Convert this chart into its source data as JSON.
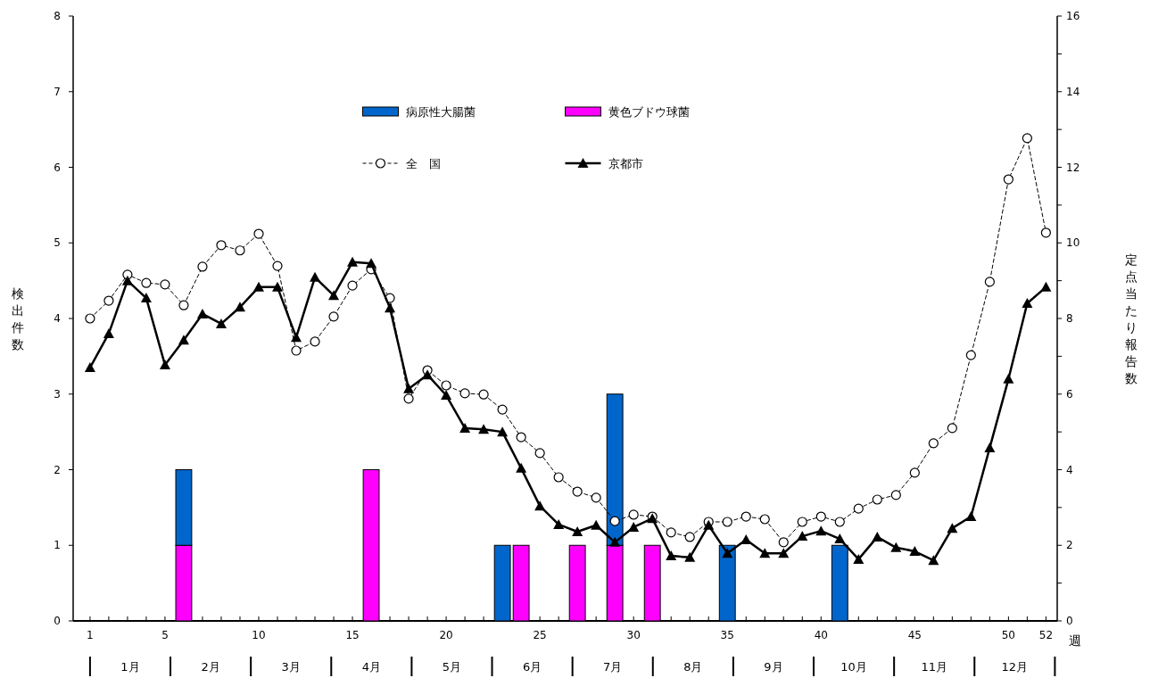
{
  "chart_data": {
    "type": "bar",
    "stacked": true,
    "xlabel": "週",
    "ylabel": "検出件数",
    "y2label": "定点当たり報告数",
    "x": [
      1,
      2,
      3,
      4,
      5,
      6,
      7,
      8,
      9,
      10,
      11,
      12,
      13,
      14,
      15,
      16,
      17,
      18,
      19,
      20,
      21,
      22,
      23,
      24,
      25,
      26,
      27,
      28,
      29,
      30,
      31,
      32,
      33,
      34,
      35,
      36,
      37,
      38,
      39,
      40,
      41,
      42,
      43,
      44,
      45,
      46,
      47,
      48,
      49,
      50,
      51,
      52
    ],
    "series": [
      {
        "name": "黄色ブドウ球菌",
        "color": "#ff00ff",
        "values": [
          null,
          null,
          null,
          null,
          null,
          1,
          null,
          null,
          null,
          null,
          null,
          null,
          null,
          null,
          null,
          2,
          null,
          null,
          null,
          null,
          null,
          null,
          null,
          1,
          null,
          null,
          1,
          null,
          1,
          null,
          1,
          null,
          null,
          null,
          null,
          null,
          null,
          null,
          null,
          null,
          null,
          null,
          null,
          null,
          null,
          null,
          null,
          null,
          null,
          null,
          null,
          null
        ]
      },
      {
        "name": "病原性大腸菌",
        "color": "#0066cc",
        "values": [
          null,
          null,
          null,
          null,
          null,
          1,
          null,
          null,
          null,
          null,
          null,
          null,
          null,
          null,
          null,
          null,
          null,
          null,
          null,
          null,
          null,
          null,
          1,
          null,
          null,
          null,
          null,
          null,
          2,
          null,
          null,
          null,
          null,
          null,
          1,
          null,
          null,
          null,
          null,
          null,
          1,
          null,
          null,
          null,
          null,
          null,
          null,
          null,
          null,
          null,
          null,
          null
        ]
      },
      {
        "name": "全　国",
        "type": "line",
        "axis": "y2",
        "color": "#000000",
        "marker": "circle",
        "line_style": "dashed",
        "values": [
          8.0,
          8.47,
          9.16,
          8.94,
          8.9,
          8.35,
          9.37,
          9.94,
          9.8,
          10.24,
          9.39,
          7.15,
          7.39,
          8.05,
          8.87,
          9.3,
          8.54,
          5.88,
          6.63,
          6.23,
          6.02,
          5.99,
          5.59,
          4.86,
          4.44,
          3.8,
          3.42,
          3.26,
          2.64,
          2.81,
          2.76,
          2.34,
          2.22,
          2.62,
          2.62,
          2.76,
          2.69,
          2.08,
          2.62,
          2.76,
          2.62,
          2.97,
          3.21,
          3.33,
          3.92,
          4.7,
          5.1,
          7.03,
          8.97,
          11.68,
          12.77,
          10.27
        ]
      },
      {
        "name": "京都市",
        "type": "line",
        "axis": "y2",
        "color": "#000000",
        "marker": "triangle",
        "line_style": "solid",
        "values": [
          6.7,
          7.6,
          9.0,
          8.54,
          6.77,
          7.43,
          8.12,
          7.86,
          8.3,
          8.83,
          8.83,
          7.5,
          9.09,
          8.61,
          9.49,
          9.46,
          8.28,
          6.14,
          6.51,
          5.97,
          5.1,
          5.07,
          5.0,
          4.04,
          3.04,
          2.55,
          2.36,
          2.53,
          2.08,
          2.48,
          2.71,
          1.72,
          1.68,
          2.53,
          1.79,
          2.15,
          1.79,
          1.79,
          2.24,
          2.38,
          2.17,
          1.63,
          2.22,
          1.94,
          1.84,
          1.6,
          2.45,
          2.76,
          4.58,
          6.4,
          8.4,
          8.83
        ]
      }
    ],
    "xlim": [
      0.1,
      52.6
    ],
    "xticks": [
      1,
      {
        "value": 2,
        "label": null
      },
      {
        "value": 3,
        "label": null
      },
      {
        "value": 4,
        "label": null
      },
      5,
      {
        "value": 6,
        "label": null
      },
      {
        "value": 7,
        "label": null
      },
      {
        "value": 8,
        "label": null
      },
      {
        "value": 9,
        "label": null
      },
      10,
      {
        "value": 11,
        "label": null
      },
      {
        "value": 12,
        "label": null
      },
      {
        "value": 13,
        "label": null
      },
      {
        "value": 14,
        "label": null
      },
      15,
      {
        "value": 16,
        "label": null
      },
      {
        "value": 17,
        "label": null
      },
      {
        "value": 18,
        "label": null
      },
      {
        "value": 19,
        "label": null
      },
      20,
      {
        "value": 21,
        "label": null
      },
      {
        "value": 22,
        "label": null
      },
      {
        "value": 23,
        "label": null
      },
      {
        "value": 24,
        "label": null
      },
      25,
      {
        "value": 26,
        "label": null
      },
      {
        "value": 27,
        "label": null
      },
      {
        "value": 28,
        "label": null
      },
      {
        "value": 29,
        "label": null
      },
      30,
      {
        "value": 31,
        "label": null
      },
      {
        "value": 32,
        "label": null
      },
      {
        "value": 33,
        "label": null
      },
      {
        "value": 34,
        "label": null
      },
      35,
      {
        "value": 36,
        "label": null
      },
      {
        "value": 37,
        "label": null
      },
      {
        "value": 38,
        "label": null
      },
      {
        "value": 39,
        "label": null
      },
      40,
      {
        "value": 41,
        "label": null
      },
      {
        "value": 42,
        "label": null
      },
      {
        "value": 43,
        "label": null
      },
      {
        "value": 44,
        "label": null
      },
      45,
      {
        "value": 46,
        "label": null
      },
      {
        "value": 47,
        "label": null
      },
      {
        "value": 48,
        "label": null
      },
      {
        "value": 49,
        "label": null
      },
      50,
      {
        "value": 51,
        "label": null
      },
      52
    ],
    "ylim": [
      0,
      8
    ],
    "yticks": [
      0,
      1,
      2,
      3,
      4,
      5,
      6,
      7,
      8
    ],
    "y2lim": [
      0,
      16
    ],
    "y2ticks": [
      0,
      {
        "value": 1,
        "label": null
      },
      2,
      {
        "value": 3,
        "label": null
      },
      4,
      {
        "value": 5,
        "label": null
      },
      6,
      {
        "value": 7,
        "label": null
      },
      8,
      {
        "value": 9,
        "label": null
      },
      10,
      {
        "value": 11,
        "label": null
      },
      12,
      {
        "value": 13,
        "label": null
      },
      14,
      {
        "value": 15,
        "label": null
      },
      16
    ],
    "annotations": [
      "1月",
      "2月",
      "3月",
      "4月",
      "5月",
      "6月",
      "7月",
      "8月",
      "9月",
      "10月",
      "11月",
      "12月"
    ],
    "legend": "top",
    "grid": false
  }
}
